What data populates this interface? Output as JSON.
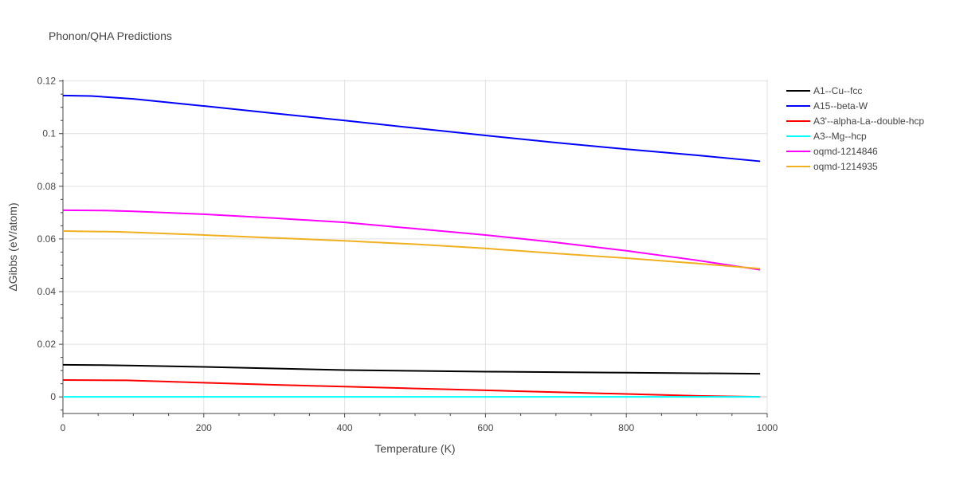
{
  "chart_data": {
    "type": "line",
    "title": "Phonon/QHA Predictions",
    "xlabel": "Temperature (K)",
    "ylabel": "ΔGibbs (eV/atom)",
    "xlim": [
      0,
      1000
    ],
    "ylim": [
      -0.0063,
      0.1205
    ],
    "xticks": [
      0,
      200,
      400,
      600,
      800,
      1000
    ],
    "xtick_labels": [
      "0",
      "200",
      "400",
      "600",
      "800",
      "1000"
    ],
    "yticks": [
      0,
      0.02,
      0.04,
      0.06,
      0.08,
      0.1,
      0.12
    ],
    "ytick_labels": [
      "0",
      "0.02",
      "0.04",
      "0.06",
      "0.08",
      "0.1",
      "0.12"
    ],
    "grid": true,
    "legend_position": "right",
    "series": [
      {
        "name": "A1--Cu--fcc",
        "color": "#000000",
        "x": [
          0,
          50,
          100,
          200,
          300,
          400,
          500,
          600,
          700,
          800,
          900,
          990
        ],
        "y": [
          0.0122,
          0.0121,
          0.0119,
          0.0114,
          0.0108,
          0.0102,
          0.0099,
          0.0096,
          0.0094,
          0.0092,
          0.009,
          0.0088
        ]
      },
      {
        "name": "A15--beta-W",
        "color": "#0000ff",
        "x": [
          0,
          40,
          100,
          200,
          300,
          400,
          500,
          600,
          700,
          800,
          900,
          990
        ],
        "y": [
          0.1145,
          0.1143,
          0.1132,
          0.1105,
          0.1077,
          0.105,
          0.1021,
          0.0993,
          0.0966,
          0.0941,
          0.0918,
          0.0895
        ]
      },
      {
        "name": "A3'--alpha-La--double-hcp",
        "color": "#ff0000",
        "x": [
          0,
          90,
          200,
          300,
          400,
          500,
          600,
          700,
          800,
          900,
          990
        ],
        "y": [
          0.0064,
          0.0063,
          0.0054,
          0.0046,
          0.0039,
          0.0032,
          0.0025,
          0.0018,
          0.0011,
          0.0004,
          0.0
        ]
      },
      {
        "name": "A3--Mg--hcp",
        "color": "#00ffff",
        "x": [
          0,
          990
        ],
        "y": [
          0.0,
          0.0
        ]
      },
      {
        "name": "oqmd-1214846",
        "color": "#ff00ff",
        "x": [
          0,
          60,
          100,
          200,
          300,
          400,
          500,
          600,
          700,
          800,
          900,
          990
        ],
        "y": [
          0.0709,
          0.0708,
          0.0705,
          0.0694,
          0.0679,
          0.0663,
          0.0639,
          0.0615,
          0.0587,
          0.0555,
          0.0519,
          0.0483
        ]
      },
      {
        "name": "oqmd-1214935",
        "color": "#f0b020",
        "x": [
          0,
          80,
          200,
          300,
          400,
          500,
          600,
          700,
          800,
          900,
          990
        ],
        "y": [
          0.063,
          0.0627,
          0.0615,
          0.0604,
          0.0593,
          0.058,
          0.0564,
          0.0545,
          0.0527,
          0.0507,
          0.0487
        ]
      }
    ]
  }
}
